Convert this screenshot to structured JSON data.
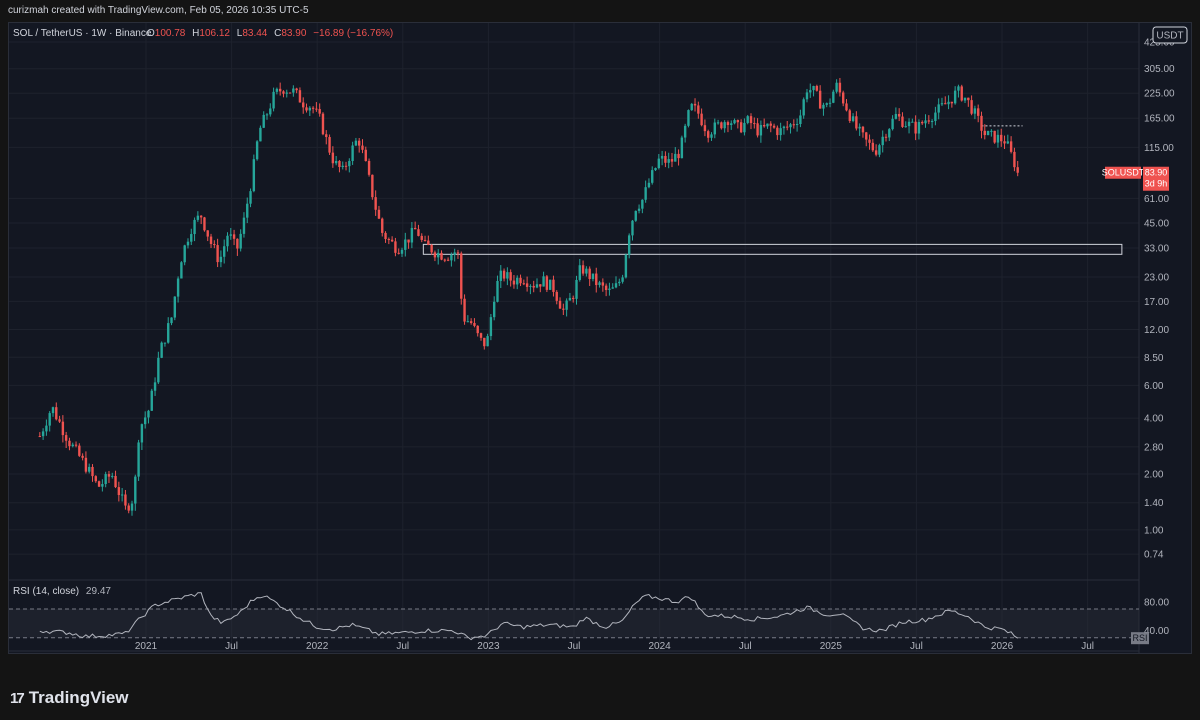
{
  "header": {
    "text": "curizmah created with TradingView.com, Feb 05, 2026 10:35 UTC-5"
  },
  "legend": {
    "symbol": "SOL / TetherUS · 1W · Binance",
    "o_label": "O",
    "o": "100.78",
    "h_label": "H",
    "h": "106.12",
    "l_label": "L",
    "l": "83.44",
    "c_label": "C",
    "c": "83.90",
    "change": "−16.89 (−16.76%)"
  },
  "currency_button": "USDT",
  "price_badge": {
    "ticker": "SOLUSDT",
    "price": "83.90",
    "countdown": "3d 9h"
  },
  "rsi": {
    "label": "RSI (14, close)",
    "value": "29.47",
    "tag": "RSI",
    "upper": 70,
    "lower": 30
  },
  "footer": {
    "brand": "TradingView"
  },
  "colors": {
    "up": "#26a69a",
    "down": "#ef5350",
    "bg": "#131722",
    "grid": "#1e222d",
    "rsi_line": "#b2b5be"
  },
  "chart_data": {
    "type": "candlestick",
    "title": "SOL / TetherUS · 1W · Binance",
    "y_scale": "log",
    "ylim": [
      0.6,
      430
    ],
    "y_ticks": [
      "425.00",
      "305.00",
      "225.00",
      "165.00",
      "115.00",
      "61.00",
      "45.00",
      "33.00",
      "23.00",
      "17.00",
      "12.00",
      "8.50",
      "6.00",
      "4.00",
      "2.80",
      "2.00",
      "1.40",
      "1.00",
      "0.74"
    ],
    "x_ticks": [
      {
        "label": "2021",
        "t": 2021.0
      },
      {
        "label": "Jul",
        "t": 2021.5
      },
      {
        "label": "2022",
        "t": 2022.0
      },
      {
        "label": "Jul",
        "t": 2022.5
      },
      {
        "label": "2023",
        "t": 2023.0
      },
      {
        "label": "Jul",
        "t": 2023.5
      },
      {
        "label": "2024",
        "t": 2024.0
      },
      {
        "label": "Jul",
        "t": 2024.5
      },
      {
        "label": "2025",
        "t": 2025.0
      },
      {
        "label": "Jul",
        "t": 2025.5
      },
      {
        "label": "2026",
        "t": 2026.0
      },
      {
        "label": "Jul",
        "t": 2026.5
      }
    ],
    "xlim": [
      2020.2,
      2026.8
    ],
    "price_path": [
      [
        2020.38,
        3.2
      ],
      [
        2020.45,
        4.6
      ],
      [
        2020.55,
        3.0
      ],
      [
        2020.65,
        2.2
      ],
      [
        2020.72,
        1.7
      ],
      [
        2020.8,
        2.0
      ],
      [
        2020.88,
        1.3
      ],
      [
        2020.93,
        1.5
      ],
      [
        2020.96,
        3.5
      ],
      [
        2021.02,
        4.5
      ],
      [
        2021.08,
        9.0
      ],
      [
        2021.15,
        14.0
      ],
      [
        2021.2,
        28.0
      ],
      [
        2021.26,
        42.0
      ],
      [
        2021.32,
        50.0
      ],
      [
        2021.38,
        35.0
      ],
      [
        2021.43,
        28.0
      ],
      [
        2021.48,
        40.0
      ],
      [
        2021.53,
        32.0
      ],
      [
        2021.57,
        45.0
      ],
      [
        2021.62,
        80.0
      ],
      [
        2021.66,
        140.0
      ],
      [
        2021.7,
        170.0
      ],
      [
        2021.75,
        220.0
      ],
      [
        2021.8,
        240.0
      ],
      [
        2021.86,
        230.0
      ],
      [
        2021.92,
        200.0
      ],
      [
        2021.97,
        190.0
      ],
      [
        2022.02,
        160.0
      ],
      [
        2022.06,
        120.0
      ],
      [
        2022.1,
        95.0
      ],
      [
        2022.15,
        85.0
      ],
      [
        2022.2,
        110.0
      ],
      [
        2022.24,
        130.0
      ],
      [
        2022.28,
        95.0
      ],
      [
        2022.34,
        55.0
      ],
      [
        2022.38,
        40.0
      ],
      [
        2022.42,
        36.0
      ],
      [
        2022.47,
        33.0
      ],
      [
        2022.52,
        36.0
      ],
      [
        2022.58,
        42.0
      ],
      [
        2022.62,
        34.0
      ],
      [
        2022.66,
        33.0
      ],
      [
        2022.7,
        31.0
      ],
      [
        2022.76,
        30.0
      ],
      [
        2022.82,
        32.0
      ],
      [
        2022.85,
        14.0
      ],
      [
        2022.9,
        13.0
      ],
      [
        2022.95,
        10.5
      ],
      [
        2022.99,
        9.9
      ],
      [
        2023.04,
        20.0
      ],
      [
        2023.08,
        24.0
      ],
      [
        2023.14,
        22.0
      ],
      [
        2023.2,
        23.0
      ],
      [
        2023.26,
        21.0
      ],
      [
        2023.32,
        22.0
      ],
      [
        2023.38,
        20.0
      ],
      [
        2023.44,
        15.0
      ],
      [
        2023.5,
        19.0
      ],
      [
        2023.54,
        26.0
      ],
      [
        2023.58,
        24.0
      ],
      [
        2023.64,
        21.0
      ],
      [
        2023.7,
        19.0
      ],
      [
        2023.74,
        20.0
      ],
      [
        2023.78,
        23.0
      ],
      [
        2023.82,
        40.0
      ],
      [
        2023.86,
        55.0
      ],
      [
        2023.9,
        60.0
      ],
      [
        2023.94,
        75.0
      ],
      [
        2024.0,
        100.0
      ],
      [
        2024.06,
        95.0
      ],
      [
        2024.12,
        110.0
      ],
      [
        2024.18,
        190.0
      ],
      [
        2024.22,
        180.0
      ],
      [
        2024.28,
        140.0
      ],
      [
        2024.34,
        150.0
      ],
      [
        2024.4,
        165.0
      ],
      [
        2024.46,
        145.0
      ],
      [
        2024.52,
        160.0
      ],
      [
        2024.58,
        140.0
      ],
      [
        2024.64,
        150.0
      ],
      [
        2024.7,
        140.0
      ],
      [
        2024.76,
        150.0
      ],
      [
        2024.82,
        170.0
      ],
      [
        2024.86,
        240.0
      ],
      [
        2024.9,
        230.0
      ],
      [
        2024.94,
        200.0
      ],
      [
        2024.98,
        190.0
      ],
      [
        2025.03,
        250.0
      ],
      [
        2025.08,
        200.0
      ],
      [
        2025.14,
        150.0
      ],
      [
        2025.2,
        125.0
      ],
      [
        2025.26,
        110.0
      ],
      [
        2025.32,
        140.0
      ],
      [
        2025.38,
        170.0
      ],
      [
        2025.44,
        155.0
      ],
      [
        2025.5,
        145.0
      ],
      [
        2025.56,
        165.0
      ],
      [
        2025.62,
        180.0
      ],
      [
        2025.68,
        200.0
      ],
      [
        2025.74,
        230.0
      ],
      [
        2025.78,
        215.0
      ],
      [
        2025.82,
        190.0
      ],
      [
        2025.86,
        160.0
      ],
      [
        2025.9,
        135.0
      ],
      [
        2025.96,
        130.0
      ],
      [
        2026.02,
        125.0
      ],
      [
        2026.06,
        100.8
      ],
      [
        2026.1,
        83.9
      ]
    ],
    "zone": {
      "t_start": 2022.62,
      "t_end": 2026.7,
      "price_top": 34.5,
      "price_bottom": 30.5
    },
    "resistance_line": {
      "t_start": 2025.88,
      "t_end": 2026.12,
      "price": 150.0
    },
    "rsi_path": [
      [
        2020.38,
        40
      ],
      [
        2020.55,
        37
      ],
      [
        2020.65,
        32
      ],
      [
        2020.8,
        34
      ],
      [
        2020.88,
        36
      ],
      [
        2020.98,
        60
      ],
      [
        2021.05,
        75
      ],
      [
        2021.15,
        82
      ],
      [
        2021.25,
        88
      ],
      [
        2021.32,
        92
      ],
      [
        2021.38,
        60
      ],
      [
        2021.45,
        50
      ],
      [
        2021.55,
        65
      ],
      [
        2021.62,
        82
      ],
      [
        2021.68,
        90
      ],
      [
        2021.75,
        80
      ],
      [
        2021.82,
        70
      ],
      [
        2021.92,
        55
      ],
      [
        2022.0,
        45
      ],
      [
        2022.1,
        42
      ],
      [
        2022.2,
        48
      ],
      [
        2022.28,
        42
      ],
      [
        2022.36,
        35
      ],
      [
        2022.5,
        37
      ],
      [
        2022.62,
        40
      ],
      [
        2022.8,
        40
      ],
      [
        2022.88,
        30
      ],
      [
        2022.99,
        33
      ],
      [
        2023.08,
        50
      ],
      [
        2023.2,
        45
      ],
      [
        2023.35,
        48
      ],
      [
        2023.5,
        45
      ],
      [
        2023.56,
        58
      ],
      [
        2023.68,
        45
      ],
      [
        2023.78,
        52
      ],
      [
        2023.86,
        78
      ],
      [
        2023.92,
        88
      ],
      [
        2024.0,
        85
      ],
      [
        2024.1,
        80
      ],
      [
        2024.18,
        88
      ],
      [
        2024.26,
        62
      ],
      [
        2024.4,
        60
      ],
      [
        2024.55,
        56
      ],
      [
        2024.7,
        60
      ],
      [
        2024.86,
        72
      ],
      [
        2024.98,
        62
      ],
      [
        2025.05,
        64
      ],
      [
        2025.2,
        42
      ],
      [
        2025.3,
        40
      ],
      [
        2025.42,
        52
      ],
      [
        2025.55,
        55
      ],
      [
        2025.7,
        68
      ],
      [
        2025.8,
        60
      ],
      [
        2025.9,
        45
      ],
      [
        2026.0,
        42
      ],
      [
        2026.05,
        36
      ],
      [
        2026.1,
        29.47
      ]
    ]
  }
}
